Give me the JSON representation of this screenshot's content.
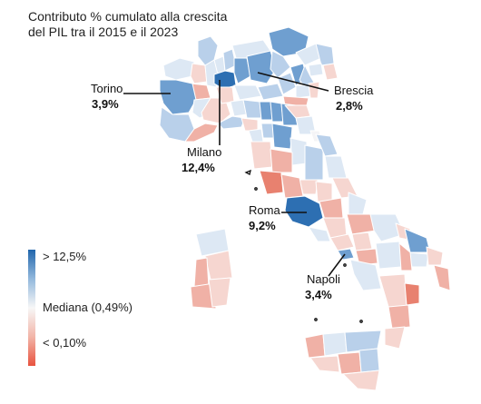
{
  "title": {
    "line1": "Contributo % cumulato alla crescita",
    "line2": "del PIL tra il 2015 e il 2023"
  },
  "legend": {
    "high_label": "> 12,5%",
    "mid_label": "Mediana (0,49%)",
    "low_label": "< 0,10%",
    "high_color": "#2166ac",
    "mid_color": "#f7f7f7",
    "low_color": "#e8533f"
  },
  "callouts": [
    {
      "city": "Torino",
      "value": "3,9%"
    },
    {
      "city": "Milano",
      "value": "12,4%"
    },
    {
      "city": "Brescia",
      "value": "2,8%"
    },
    {
      "city": "Roma",
      "value": "9,2%"
    },
    {
      "city": "Napoli",
      "value": "3,4%"
    }
  ],
  "colors": {
    "province_border": "#ffffff",
    "dark_blue": "#2d6fb2",
    "mid_blue": "#6f9fd0",
    "light_blue": "#b9d0ea",
    "pale_blue": "#dde8f4",
    "neutral": "#f4f4f6",
    "pale_red": "#f6d6d0",
    "light_red": "#f0b1a6",
    "mid_red": "#e8816f"
  }
}
